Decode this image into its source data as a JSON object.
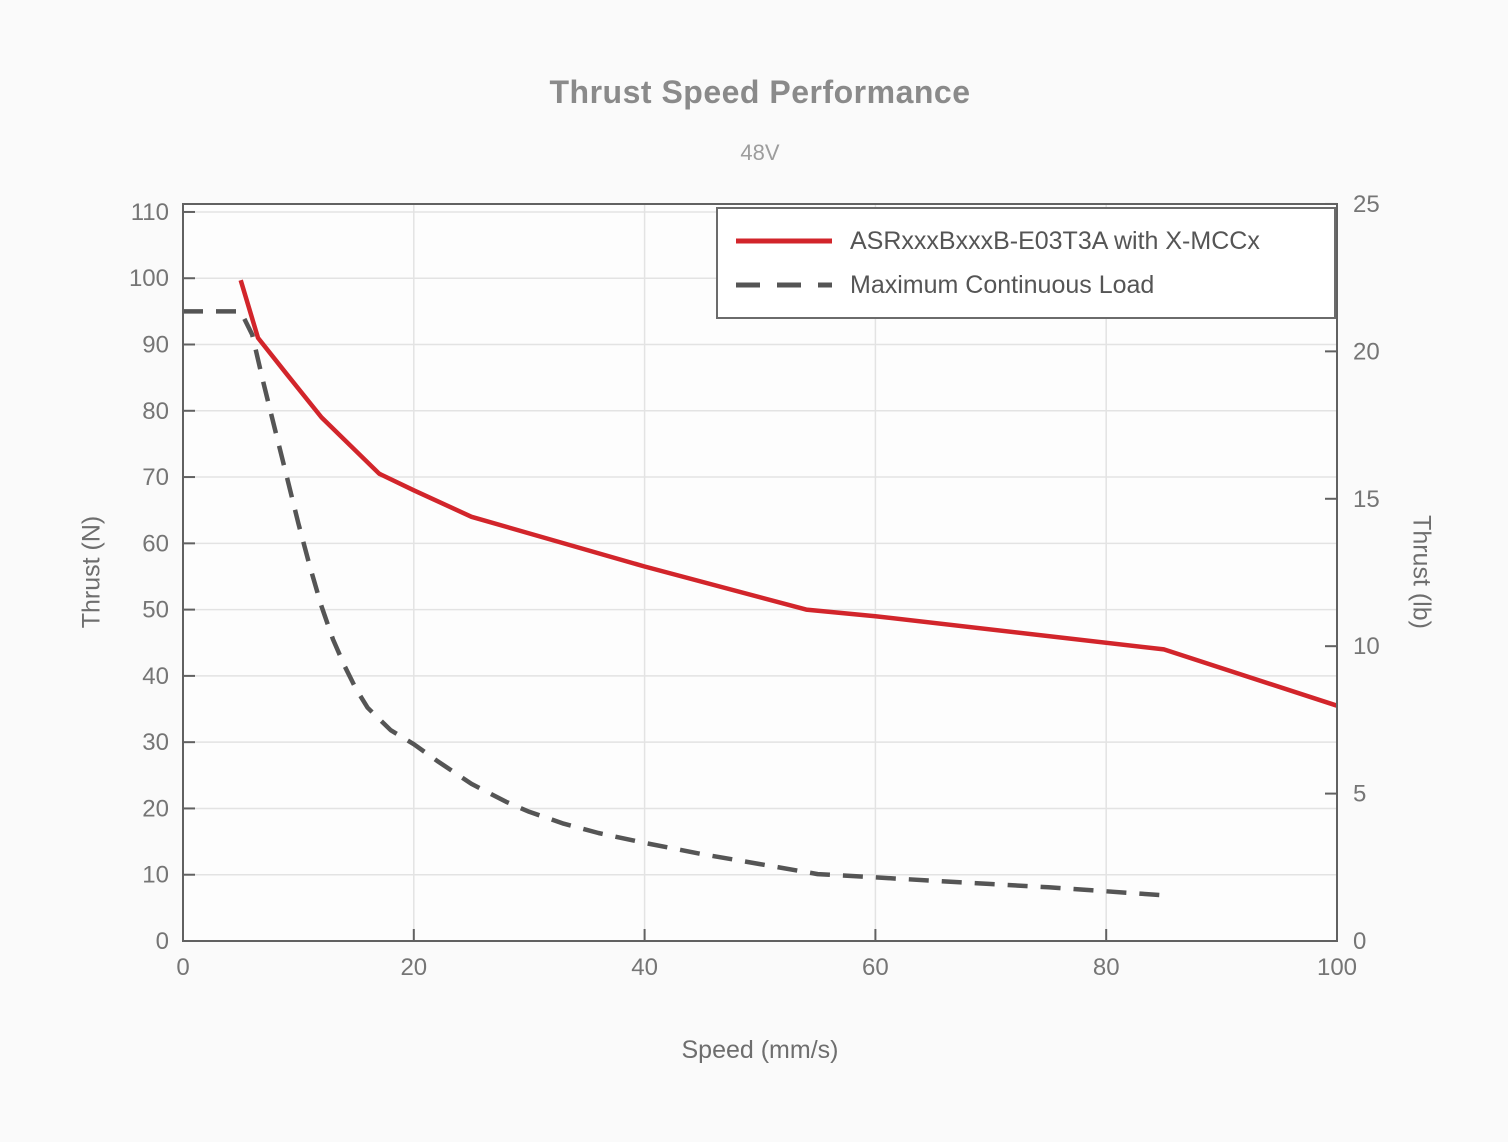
{
  "title": "Thrust Speed Performance",
  "subtitle": "48V",
  "axes": {
    "x": {
      "label": "Speed (mm/s)"
    },
    "y_left": {
      "label": "Thrust (N)"
    },
    "y_right": {
      "label": "Thrust (lb)"
    }
  },
  "colors": {
    "page_bg": "#fafafa",
    "plot_bg": "#fdfdfd",
    "grid": "#e3e3e3",
    "frame": "#616161",
    "tick_label": "#757575",
    "title": "#8a8a8a",
    "subtitle": "#9d9d9d",
    "legend_text": "#555555",
    "legend_border": "#6b6b6b",
    "series_red": "#d2252b",
    "series_gray": "#555555"
  },
  "chart_data": {
    "type": "line",
    "title": "Thrust Speed Performance",
    "subtitle": "48V",
    "xlabel": "Speed (mm/s)",
    "ylabel_left": "Thrust (N)",
    "ylabel_right": "Thrust (lb)",
    "x_range": [
      0,
      100
    ],
    "y_range_n": [
      0,
      111.2
    ],
    "y_range_lb": [
      0,
      25
    ],
    "x_ticks": [
      0,
      20,
      40,
      60,
      80,
      100
    ],
    "y_ticks_n": [
      0,
      10,
      20,
      30,
      40,
      50,
      60,
      70,
      80,
      90,
      100,
      110
    ],
    "y_ticks_lb": [
      0,
      5,
      10,
      15,
      20,
      25
    ],
    "lb_to_n": 4.44822,
    "grid": true,
    "legend_position": "top-right-inside",
    "series": [
      {
        "name": "ASRxxxBxxxB-E03T3A with X-MCCx",
        "color": "#d2252b",
        "line_style": "solid",
        "points": [
          [
            5,
            99.7
          ],
          [
            6.5,
            91
          ],
          [
            9,
            85.5
          ],
          [
            12,
            79
          ],
          [
            17,
            70.5
          ],
          [
            20,
            68
          ],
          [
            25,
            64
          ],
          [
            40,
            56.5
          ],
          [
            54,
            50
          ],
          [
            60,
            49
          ],
          [
            85,
            44
          ],
          [
            100,
            35.5
          ]
        ]
      },
      {
        "name": "Maximum Continuous Load",
        "color": "#555555",
        "line_style": "dashed",
        "points": [
          [
            0,
            95
          ],
          [
            5,
            95
          ],
          [
            6,
            91.5
          ],
          [
            7,
            84
          ],
          [
            8,
            77
          ],
          [
            9,
            70
          ],
          [
            10,
            63
          ],
          [
            11,
            56.5
          ],
          [
            12,
            50.5
          ],
          [
            13,
            45.5
          ],
          [
            14,
            41.5
          ],
          [
            15,
            38
          ],
          [
            16,
            35.2
          ],
          [
            17,
            33.5
          ],
          [
            18,
            31.8
          ],
          [
            20,
            29.7
          ],
          [
            22,
            27.2
          ],
          [
            25,
            23.7
          ],
          [
            28,
            21
          ],
          [
            30,
            19.5
          ],
          [
            33,
            17.7
          ],
          [
            36,
            16.3
          ],
          [
            40,
            14.8
          ],
          [
            45,
            13.1
          ],
          [
            50,
            11.6
          ],
          [
            55,
            10.1
          ],
          [
            60,
            9.6
          ],
          [
            65,
            9.1
          ],
          [
            70,
            8.6
          ],
          [
            75,
            8.1
          ],
          [
            80,
            7.5
          ],
          [
            85,
            6.9
          ]
        ]
      }
    ]
  }
}
